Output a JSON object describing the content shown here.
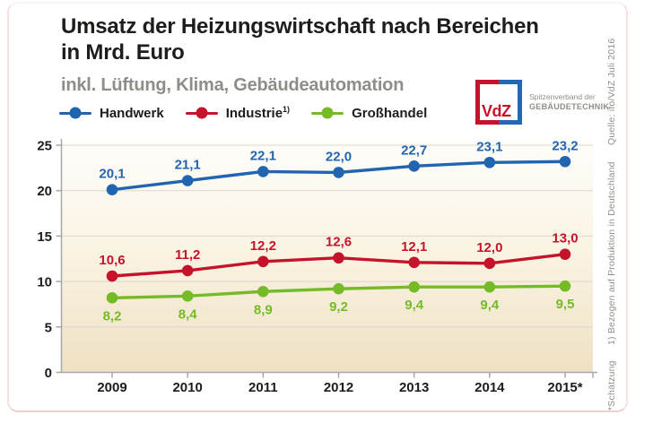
{
  "header": {
    "title": "Umsatz der Heizungswirtschaft nach Bereichen\nin Mrd. Euro",
    "subtitle": "inkl. Lüftung, Klima, Gebäudeautomation"
  },
  "logo": {
    "text": "VdZ",
    "org_line1": "Spitzenverband der",
    "org_line2": "GEBÄUDETECHNIK",
    "red": "#c5132b",
    "blue": "#2368b4"
  },
  "legend": {
    "items": [
      {
        "label": "Handwerk",
        "sup": "",
        "color": "#2165b0"
      },
      {
        "label": "Industrie",
        "sup": "1)",
        "color": "#c5132b"
      },
      {
        "label": "Großhandel",
        "sup": "",
        "color": "#74bb27"
      }
    ]
  },
  "side_notes": {
    "source": "Quelle: ifo/VdZ Juli 2016",
    "footnote1": "1) Bezogen auf Produktion in Deutschland",
    "footnote2": "*Schätzung"
  },
  "chart_data": {
    "type": "line",
    "title": "Umsatz der Heizungswirtschaft nach Bereichen in Mrd. Euro",
    "subtitle": "inkl. Lüftung, Klima, Gebäudeautomation",
    "xlabel": "",
    "ylabel": "",
    "categories": [
      "2009",
      "2010",
      "2011",
      "2012",
      "2013",
      "2014",
      "2015*"
    ],
    "series": [
      {
        "name": "Handwerk",
        "color": "#2165b0",
        "values": [
          20.1,
          21.1,
          22.1,
          22.0,
          22.7,
          23.1,
          23.2
        ],
        "labels": [
          "20,1",
          "21,1",
          "22,1",
          "22,0",
          "22,7",
          "23,1",
          "23,2"
        ],
        "label_position": "above"
      },
      {
        "name": "Industrie 1)",
        "color": "#c5132b",
        "values": [
          10.6,
          11.2,
          12.2,
          12.6,
          12.1,
          12.0,
          13.0
        ],
        "labels": [
          "10,6",
          "11,2",
          "12,2",
          "12,6",
          "12,1",
          "12,0",
          "13,0"
        ],
        "label_position": "above"
      },
      {
        "name": "Großhandel",
        "color": "#74bb27",
        "values": [
          8.2,
          8.4,
          8.9,
          9.2,
          9.4,
          9.4,
          9.5
        ],
        "labels": [
          "8,2",
          "8,4",
          "8,9",
          "9,2",
          "9,4",
          "9,4",
          "9,5"
        ],
        "label_position": "below"
      }
    ],
    "ylim": [
      0,
      25
    ],
    "yticks": [
      0,
      5,
      10,
      15,
      20,
      25
    ],
    "grid": true,
    "legend_position": "top",
    "plot_background": [
      "#fefdfa",
      "#faf3e2",
      "#eee0c3"
    ],
    "grid_color": "#dcd8cd",
    "axis_color": "#a7a7a7",
    "tick_label_color": "#1c1c1a"
  }
}
